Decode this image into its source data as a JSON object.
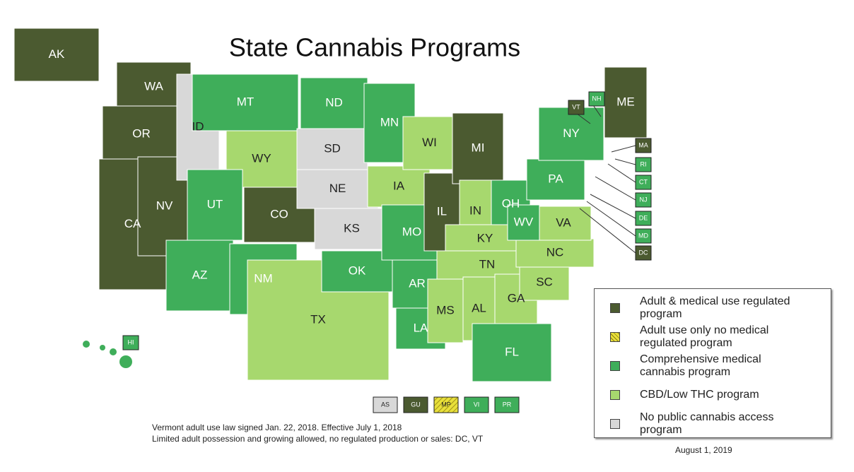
{
  "title": "State Cannabis Programs",
  "legend": [
    {
      "label": "Adult & medical use regulated program",
      "color": "#4b5a30"
    },
    {
      "label": "Adult use only no medical regulated program",
      "color": "#e8e03a",
      "hatch": true
    },
    {
      "label": "Comprehensive medical cannabis program",
      "color": "#3fae5a"
    },
    {
      "label": "CBD/Low THC program",
      "color": "#a7d86e"
    },
    {
      "label": "No public cannabis access program",
      "color": "#d8d8d8"
    }
  ],
  "states": [
    {
      "label": "AK",
      "category": 0
    },
    {
      "label": "WA",
      "category": 0
    },
    {
      "label": "OR",
      "category": 0
    },
    {
      "label": "CA",
      "category": 0
    },
    {
      "label": "NV",
      "category": 0
    },
    {
      "label": "ID",
      "category": 4
    },
    {
      "label": "MT",
      "category": 2
    },
    {
      "label": "WY",
      "category": 3
    },
    {
      "label": "UT",
      "category": 2
    },
    {
      "label": "CO",
      "category": 0
    },
    {
      "label": "AZ",
      "category": 2
    },
    {
      "label": "NM",
      "category": 2
    },
    {
      "label": "ND",
      "category": 2
    },
    {
      "label": "SD",
      "category": 4
    },
    {
      "label": "NE",
      "category": 4
    },
    {
      "label": "KS",
      "category": 4
    },
    {
      "label": "TX",
      "category": 3
    },
    {
      "label": "OK",
      "category": 2
    },
    {
      "label": "MN",
      "category": 2
    },
    {
      "label": "IA",
      "category": 3
    },
    {
      "label": "MO",
      "category": 2
    },
    {
      "label": "AR",
      "category": 2
    },
    {
      "label": "LA",
      "category": 2
    },
    {
      "label": "WI",
      "category": 3
    },
    {
      "label": "IL",
      "category": 0
    },
    {
      "label": "MI",
      "category": 0
    },
    {
      "label": "IN",
      "category": 3
    },
    {
      "label": "OH",
      "category": 2
    },
    {
      "label": "KY",
      "category": 3
    },
    {
      "label": "TN",
      "category": 3
    },
    {
      "label": "MS",
      "category": 3
    },
    {
      "label": "AL",
      "category": 3
    },
    {
      "label": "FL",
      "category": 2
    },
    {
      "label": "GA",
      "category": 3
    },
    {
      "label": "SC",
      "category": 3
    },
    {
      "label": "NC",
      "category": 3
    },
    {
      "label": "VA",
      "category": 3
    },
    {
      "label": "WV",
      "category": 2
    },
    {
      "label": "PA",
      "category": 2
    },
    {
      "label": "NY",
      "category": 2
    },
    {
      "label": "ME",
      "category": 0
    }
  ],
  "small_states": [
    {
      "label": "VT",
      "category": 0
    },
    {
      "label": "NH",
      "category": 2
    },
    {
      "label": "MA",
      "category": 0
    },
    {
      "label": "RI",
      "category": 2
    },
    {
      "label": "CT",
      "category": 2
    },
    {
      "label": "NJ",
      "category": 2
    },
    {
      "label": "DE",
      "category": 2
    },
    {
      "label": "MD",
      "category": 2
    },
    {
      "label": "DC",
      "category": 0
    },
    {
      "label": "HI",
      "category": 2
    }
  ],
  "territories": [
    {
      "label": "AS",
      "category": 4
    },
    {
      "label": "GU",
      "category": 0
    },
    {
      "label": "MP",
      "category": 1
    },
    {
      "label": "VI",
      "category": 2
    },
    {
      "label": "PR",
      "category": 2
    }
  ],
  "notes": [
    "Vermont adult use law signed Jan. 22, 2018. Effective July 1, 2018",
    "Limited adult possession and growing allowed, no regulated production or sales: DC, VT"
  ],
  "date": "August 1, 2019"
}
